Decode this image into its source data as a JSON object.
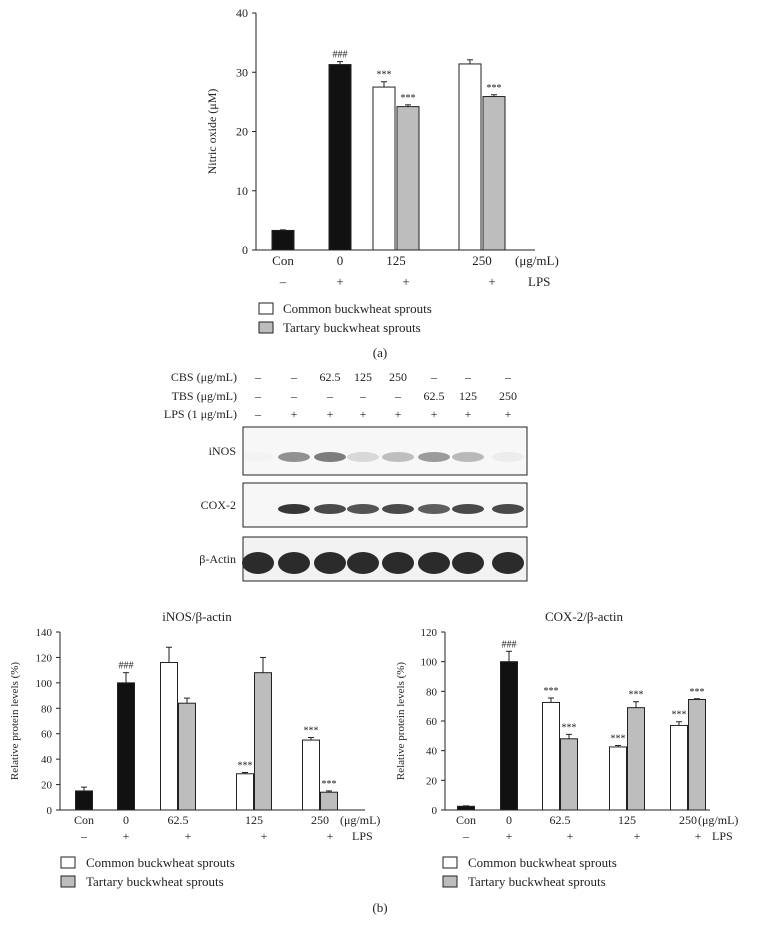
{
  "chart_data": [
    {
      "id": "panel-a",
      "type": "bar",
      "ylabel": "Nitric oxide (μM)",
      "ylim": [
        0,
        40
      ],
      "yticks": [
        0,
        10,
        20,
        30,
        40
      ],
      "conc_unit": "(μg/mL)",
      "lps_label": "LPS",
      "groups": [
        {
          "label": "Con",
          "lps": "–"
        },
        {
          "label": "0",
          "lps": "+"
        },
        {
          "label": "125",
          "lps": "+"
        },
        {
          "label": "250",
          "lps": "+"
        }
      ],
      "bars": [
        {
          "group": 0,
          "series": "control",
          "value": 3.3,
          "error": 0.1,
          "sig": ""
        },
        {
          "group": 1,
          "series": "control",
          "value": 31.3,
          "error": 0.5,
          "sig": "###"
        },
        {
          "group": 2,
          "series": "common",
          "value": 27.5,
          "error": 0.9,
          "sig": "***"
        },
        {
          "group": 2,
          "series": "tartary",
          "value": 24.2,
          "error": 0.3,
          "sig": "***"
        },
        {
          "group": 3,
          "series": "common",
          "value": 31.4,
          "error": 0.7,
          "sig": ""
        },
        {
          "group": 3,
          "series": "tartary",
          "value": 25.9,
          "error": 0.3,
          "sig": "***"
        }
      ]
    },
    {
      "id": "panel-b-inos",
      "type": "bar",
      "title": "iNOS/β-actin",
      "ylabel": "Relative protein levels (%)",
      "ylim": [
        0,
        140
      ],
      "yticks": [
        0,
        20,
        40,
        60,
        80,
        100,
        120,
        140
      ],
      "conc_unit": "(μg/mL)",
      "lps_label": "LPS",
      "groups": [
        {
          "label": "Con",
          "lps": "–"
        },
        {
          "label": "0",
          "lps": "+"
        },
        {
          "label": "62.5",
          "lps": "+"
        },
        {
          "label": "125",
          "lps": "+"
        },
        {
          "label": "250",
          "lps": "+"
        }
      ],
      "bars": [
        {
          "group": 0,
          "series": "control",
          "value": 15,
          "error": 3,
          "sig": ""
        },
        {
          "group": 1,
          "series": "control",
          "value": 100,
          "error": 8,
          "sig": "###"
        },
        {
          "group": 2,
          "series": "common",
          "value": 116,
          "error": 12,
          "sig": ""
        },
        {
          "group": 2,
          "series": "tartary",
          "value": 84,
          "error": 4,
          "sig": ""
        },
        {
          "group": 3,
          "series": "common",
          "value": 28.5,
          "error": 1,
          "sig": "***"
        },
        {
          "group": 3,
          "series": "tartary",
          "value": 108,
          "error": 12,
          "sig": ""
        },
        {
          "group": 4,
          "series": "common",
          "value": 55,
          "error": 2,
          "sig": "***"
        },
        {
          "group": 4,
          "series": "tartary",
          "value": 14,
          "error": 1,
          "sig": "***"
        }
      ]
    },
    {
      "id": "panel-b-cox2",
      "type": "bar",
      "title": "COX-2/β-actin",
      "ylabel": "Relative protein levels (%)",
      "ylim": [
        0,
        120
      ],
      "yticks": [
        0,
        20,
        40,
        60,
        80,
        100,
        120
      ],
      "conc_unit": "(μg/mL)",
      "lps_label": "LPS",
      "groups": [
        {
          "label": "Con",
          "lps": "–"
        },
        {
          "label": "0",
          "lps": "+"
        },
        {
          "label": "62.5",
          "lps": "+"
        },
        {
          "label": "125",
          "lps": "+"
        },
        {
          "label": "250",
          "lps": "+"
        }
      ],
      "bars": [
        {
          "group": 0,
          "series": "control",
          "value": 2.5,
          "error": 0.3,
          "sig": ""
        },
        {
          "group": 1,
          "series": "control",
          "value": 100,
          "error": 7,
          "sig": "###"
        },
        {
          "group": 2,
          "series": "common",
          "value": 72.5,
          "error": 3,
          "sig": "***"
        },
        {
          "group": 2,
          "series": "tartary",
          "value": 48,
          "error": 3,
          "sig": "***"
        },
        {
          "group": 3,
          "series": "common",
          "value": 42.5,
          "error": 1,
          "sig": "***"
        },
        {
          "group": 3,
          "series": "tartary",
          "value": 69,
          "error": 4,
          "sig": "***"
        },
        {
          "group": 4,
          "series": "common",
          "value": 57,
          "error": 2.5,
          "sig": "***"
        },
        {
          "group": 4,
          "series": "tartary",
          "value": 74.5,
          "error": 0.5,
          "sig": "***"
        }
      ]
    }
  ],
  "legend": {
    "common": "Common buckwheat sprouts",
    "tartary": "Tartary buckwheat sprouts"
  },
  "colors": {
    "control": "#111111",
    "common": "#ffffff",
    "tartary": "#bdbdbd",
    "band": "#2b2b2b"
  },
  "panel_labels": {
    "a": "(a)",
    "b": "(b)"
  },
  "blot": {
    "treatment_rows": [
      {
        "label": "CBS (μg/mL)",
        "values": [
          "–",
          "–",
          "62.5",
          "125",
          "250",
          "–",
          "–",
          "–"
        ]
      },
      {
        "label": "TBS (μg/mL)",
        "values": [
          "–",
          "–",
          "–",
          "–",
          "–",
          "62.5",
          "125",
          "250"
        ]
      },
      {
        "label": "LPS (1 μg/mL)",
        "values": [
          "–",
          "+",
          "+",
          "+",
          "+",
          "+",
          "+",
          "+"
        ]
      }
    ],
    "lanes": [
      {
        "label": "iNOS",
        "intensity": [
          0.02,
          0.5,
          0.6,
          0.15,
          0.28,
          0.45,
          0.3,
          0.05
        ]
      },
      {
        "label": "COX-2",
        "intensity": [
          0.0,
          0.95,
          0.85,
          0.8,
          0.85,
          0.75,
          0.85,
          0.85
        ]
      },
      {
        "label": "β-Actin",
        "intensity": [
          1,
          1,
          1,
          1,
          1,
          1,
          1,
          1
        ]
      }
    ]
  }
}
